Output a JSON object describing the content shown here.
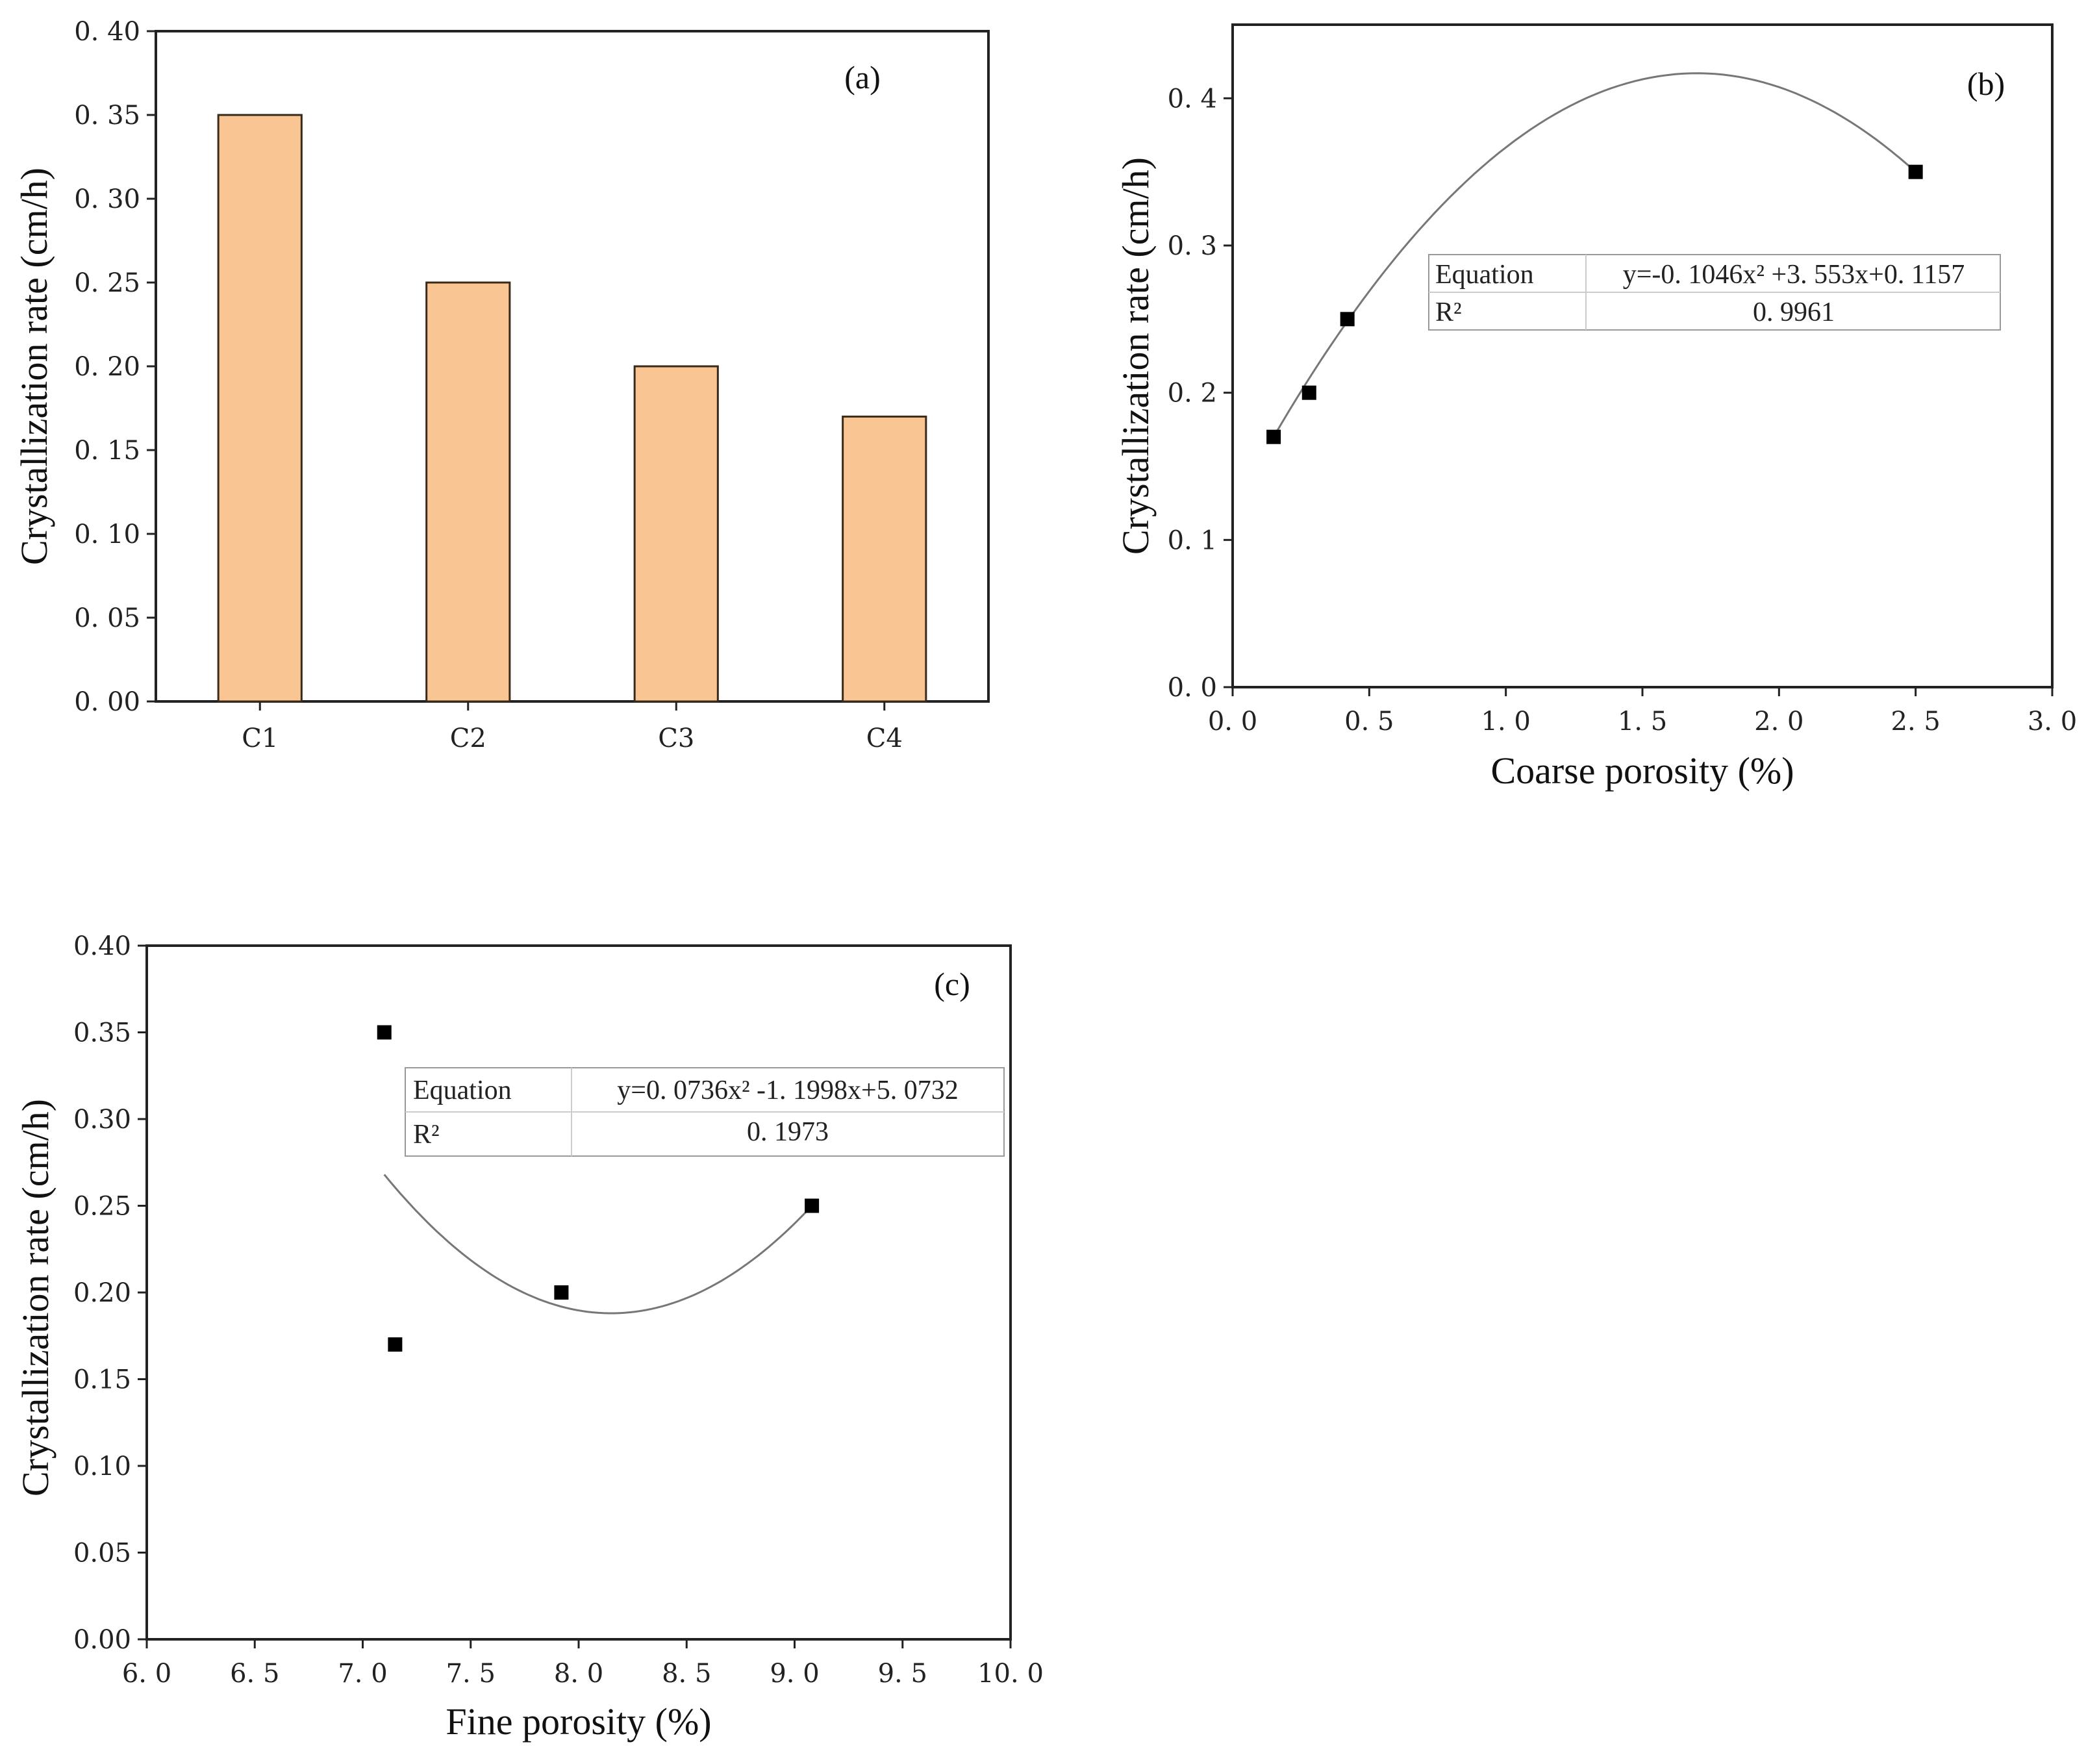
{
  "chart_data": [
    {
      "type": "bar",
      "panel_label": "(a)",
      "title": "",
      "categories": [
        "C1",
        "C2",
        "C3",
        "C4"
      ],
      "values": [
        0.35,
        0.25,
        0.2,
        0.17
      ],
      "xlabel": "",
      "ylabel": "Crystallization rate (cm/h)",
      "ylim": [
        0,
        0.4
      ],
      "yticks": [
        "0. 00",
        "0. 05",
        "0. 10",
        "0. 15",
        "0. 20",
        "0. 25",
        "0. 30",
        "0. 35",
        "0. 40"
      ],
      "bar_color": "#f9c593",
      "grid": false
    },
    {
      "type": "scatter",
      "panel_label": "(b)",
      "title": "",
      "x": [
        0.15,
        0.28,
        0.42,
        2.5
      ],
      "y": [
        0.17,
        0.2,
        0.25,
        0.35
      ],
      "fit": {
        "type": "quadratic",
        "a": -0.1046,
        "b": 3.553,
        "c": 0.1157,
        "x_range": [
          0.15,
          2.5
        ]
      },
      "fit_note": "curve drawn as the fitted quadratic as it appears in the figure",
      "equation_box": {
        "row1_label": "Equation",
        "row1_value": "y=-0. 1046x² +3. 553x+0. 1157",
        "row2_label": "R²",
        "row2_value": "0. 9961",
        "position": "upper-right"
      },
      "xlabel": "Coarse porosity (%)",
      "ylabel": "Crystallization rate (cm/h)",
      "xlim": [
        0,
        3.0
      ],
      "ylim": [
        0,
        0.45
      ],
      "xticks": [
        "0. 0",
        "0. 5",
        "1. 0",
        "1. 5",
        "2. 0",
        "2. 5",
        "3. 0"
      ],
      "yticks": [
        "0. 0",
        "0. 1",
        "0. 2",
        "0. 3",
        "0. 4"
      ],
      "grid": false
    },
    {
      "type": "scatter",
      "panel_label": "(c)",
      "title": "",
      "x": [
        7.1,
        7.15,
        7.92,
        9.08
      ],
      "y": [
        0.35,
        0.17,
        0.2,
        0.25
      ],
      "fit": {
        "type": "quadratic",
        "a": 0.0736,
        "b": -1.1998,
        "c": 5.0732,
        "x_range": [
          7.1,
          9.08
        ]
      },
      "fit_note": "curve drawn as a parabola with vertex near x=8.15, y=0.188, ending at 0.268 (x=7.1) and 0.25 (x=9.08)",
      "equation_box": {
        "row1_label": "Equation",
        "row1_value": "y=0. 0736x² -1. 1998x+5. 0732",
        "row2_label": "R²",
        "row2_value": "0. 1973",
        "position": "upper-right"
      },
      "xlabel": "Fine porosity (%)",
      "ylabel": "Crystallization rate (cm/h)",
      "xlim": [
        6.0,
        10.0
      ],
      "ylim": [
        0,
        0.4
      ],
      "xticks": [
        "6. 0",
        "6. 5",
        "7. 0",
        "7. 5",
        "8. 0",
        "8. 5",
        "9. 0",
        "9. 5",
        "10. 0"
      ],
      "yticks": [
        "0.00",
        "0.05",
        "0.10",
        "0.15",
        "0.20",
        "0.25",
        "0.30",
        "0.35",
        "0.40"
      ],
      "grid": false
    }
  ]
}
